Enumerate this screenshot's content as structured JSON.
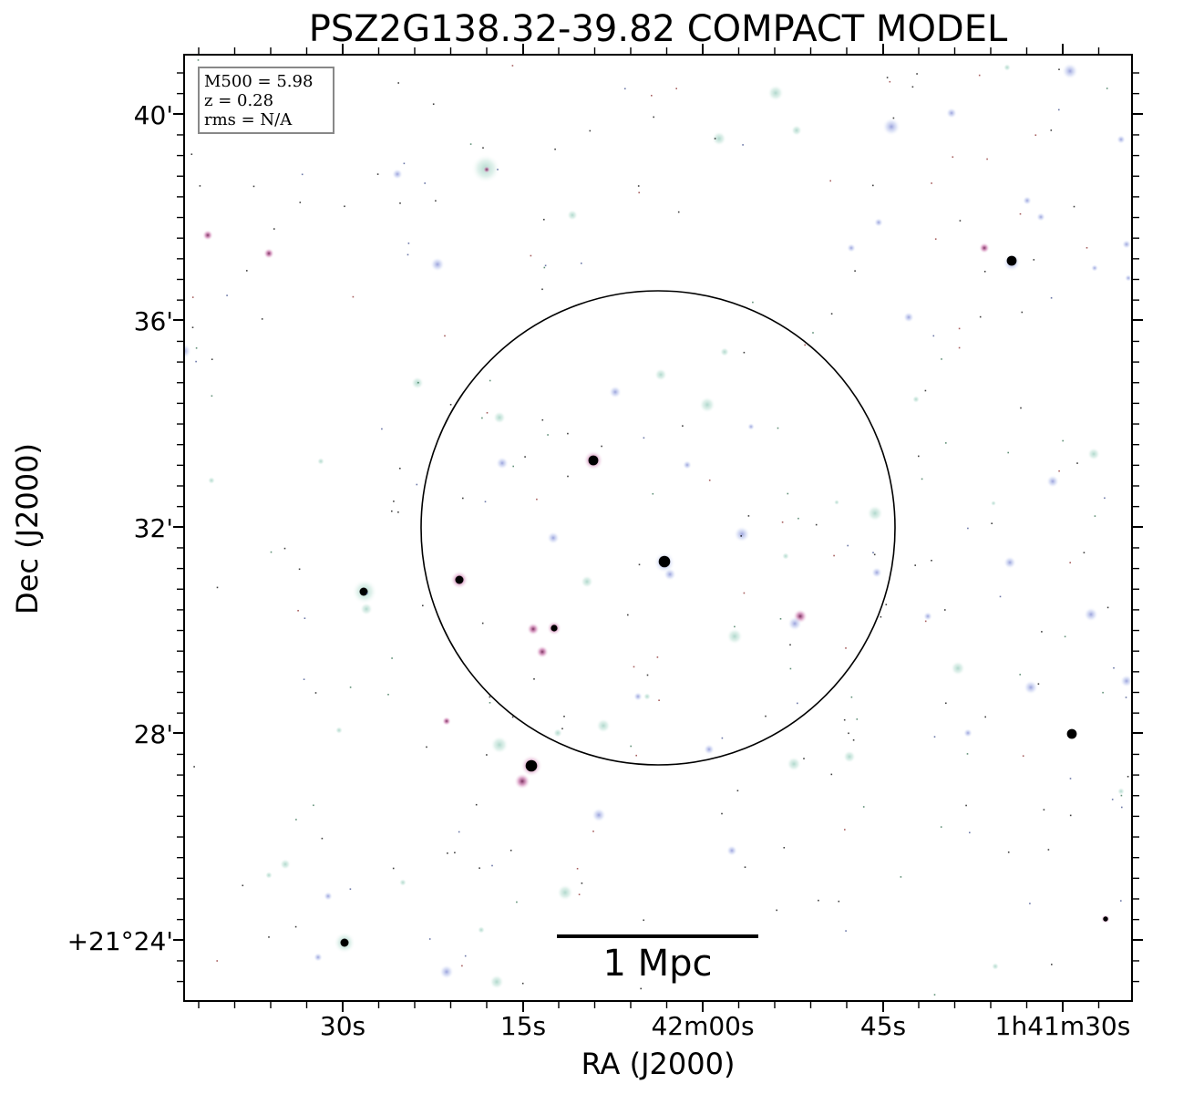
{
  "title": "PSZ2G138.32-39.82 COMPACT MODEL",
  "axes": {
    "xlabel": "RA (J2000)",
    "ylabel": "Dec (J2000)",
    "x_ticks": [
      "30s",
      "15s",
      "42m00s",
      "45s",
      "1h41m30s"
    ],
    "y_ticks": [
      "40'",
      "36'",
      "32'",
      "28'",
      "+21°24'"
    ]
  },
  "info_box": {
    "mass": "M500 = 5.98",
    "redshift": "z = 0.28",
    "rms": "rms = N/A"
  },
  "scale_bar": {
    "label": "1 Mpc"
  },
  "colors": {
    "axis": "#000000",
    "circle": "#000000",
    "source_glow": "#8fc9b8",
    "source_blue": "#9aa8e6",
    "source_magenta": "#b04a8c",
    "source_core": "#000000",
    "info_border": "#888888"
  }
}
